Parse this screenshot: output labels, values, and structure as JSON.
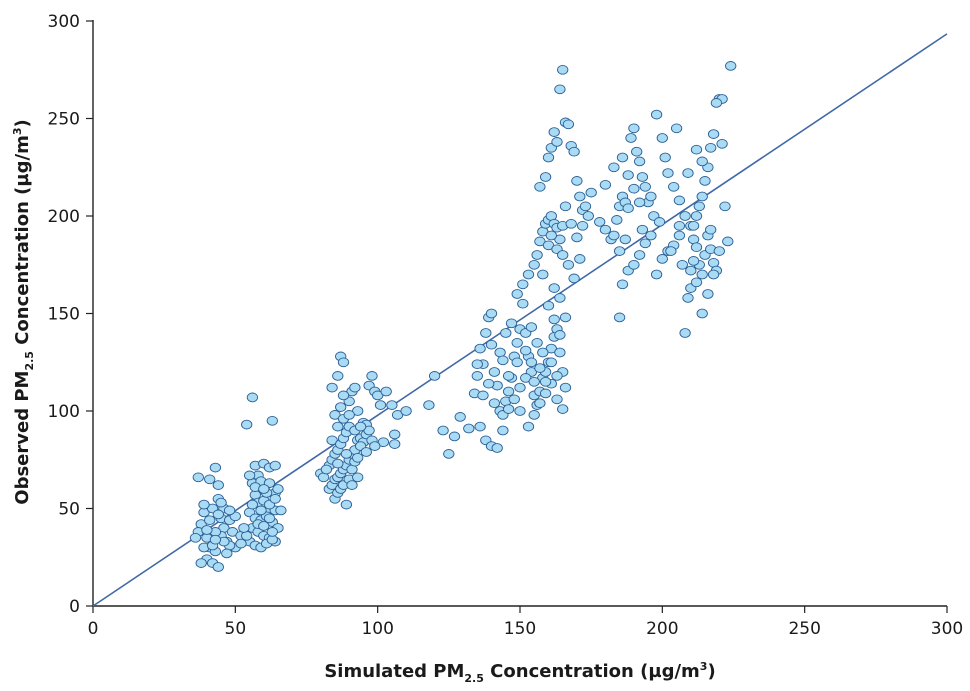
{
  "chart_data": {
    "type": "scatter",
    "xlabel": {
      "pre": "Simulated PM",
      "sub": "2.5",
      "post": " Concentration (µg/m",
      "sup": "3",
      "end": ")"
    },
    "ylabel": {
      "pre": "Observed PM",
      "sub": "2.5",
      "post": " Concentration (µg/m",
      "sup": "3",
      "end": ")"
    },
    "xlim": [
      0,
      300
    ],
    "ylim": [
      0,
      300
    ],
    "xticks": [
      "0",
      "50",
      "100",
      "150",
      "200",
      "250",
      "300"
    ],
    "yticks": [
      "0",
      "50",
      "100",
      "150",
      "200",
      "250",
      "300"
    ],
    "grid": false,
    "colors": {
      "marker_fill": "#a9dbf4",
      "marker_edge": "#2b5f94",
      "line": "#4169a8"
    },
    "reference_line": {
      "slope": 0.978,
      "intercept": 0
    },
    "points": [
      [
        37,
        66
      ],
      [
        41,
        65
      ],
      [
        44,
        62
      ],
      [
        43,
        71
      ],
      [
        40,
        35
      ],
      [
        38,
        42
      ],
      [
        39,
        48
      ],
      [
        42,
        50
      ],
      [
        44,
        55
      ],
      [
        45,
        45
      ],
      [
        46,
        40
      ],
      [
        41,
        30
      ],
      [
        43,
        28
      ],
      [
        40,
        24
      ],
      [
        42,
        22
      ],
      [
        44,
        20
      ],
      [
        47,
        33
      ],
      [
        48,
        44
      ],
      [
        49,
        38
      ],
      [
        46,
        50
      ],
      [
        45,
        36
      ],
      [
        37,
        38
      ],
      [
        39,
        30
      ],
      [
        38,
        22
      ],
      [
        50,
        46
      ],
      [
        52,
        36
      ],
      [
        50,
        30
      ],
      [
        48,
        31
      ],
      [
        43,
        38
      ],
      [
        36,
        35
      ],
      [
        41,
        44
      ],
      [
        44,
        47
      ],
      [
        46,
        33
      ],
      [
        39,
        52
      ],
      [
        42,
        31
      ],
      [
        47,
        27
      ],
      [
        40,
        39
      ],
      [
        45,
        53
      ],
      [
        48,
        49
      ],
      [
        43,
        34
      ],
      [
        54,
        93
      ],
      [
        56,
        107
      ],
      [
        63,
        95
      ],
      [
        57,
        72
      ],
      [
        58,
        67
      ],
      [
        60,
        73
      ],
      [
        62,
        71
      ],
      [
        64,
        72
      ],
      [
        56,
        63
      ],
      [
        59,
        64
      ],
      [
        62,
        63
      ],
      [
        64,
        58
      ],
      [
        55,
        67
      ],
      [
        57,
        57
      ],
      [
        58,
        53
      ],
      [
        60,
        54
      ],
      [
        62,
        50
      ],
      [
        64,
        49
      ],
      [
        55,
        48
      ],
      [
        57,
        45
      ],
      [
        59,
        44
      ],
      [
        61,
        46
      ],
      [
        63,
        43
      ],
      [
        65,
        40
      ],
      [
        56,
        40
      ],
      [
        58,
        38
      ],
      [
        60,
        36
      ],
      [
        62,
        35
      ],
      [
        64,
        33
      ],
      [
        55,
        33
      ],
      [
        57,
        31
      ],
      [
        59,
        30
      ],
      [
        61,
        32
      ],
      [
        63,
        34
      ],
      [
        58,
        42
      ],
      [
        60,
        41
      ],
      [
        62,
        52
      ],
      [
        64,
        55
      ],
      [
        66,
        49
      ],
      [
        57,
        61
      ],
      [
        61,
        58
      ],
      [
        54,
        36
      ],
      [
        52,
        32
      ],
      [
        53,
        40
      ],
      [
        60,
        60
      ],
      [
        65,
        60
      ],
      [
        62,
        45
      ],
      [
        59,
        49
      ],
      [
        56,
        52
      ],
      [
        63,
        38
      ],
      [
        80,
        68
      ],
      [
        83,
        72
      ],
      [
        84,
        85
      ],
      [
        85,
        98
      ],
      [
        86,
        118
      ],
      [
        87,
        128
      ],
      [
        88,
        125
      ],
      [
        90,
        105
      ],
      [
        91,
        110
      ],
      [
        92,
        112
      ],
      [
        93,
        100
      ],
      [
        95,
        94
      ],
      [
        96,
        93
      ],
      [
        97,
        113
      ],
      [
        98,
        118
      ],
      [
        99,
        110
      ],
      [
        100,
        108
      ],
      [
        101,
        103
      ],
      [
        103,
        110
      ],
      [
        105,
        103
      ],
      [
        106,
        88
      ],
      [
        107,
        98
      ],
      [
        110,
        100
      ],
      [
        83,
        60
      ],
      [
        84,
        62
      ],
      [
        85,
        65
      ],
      [
        86,
        66
      ],
      [
        87,
        68
      ],
      [
        88,
        70
      ],
      [
        89,
        72
      ],
      [
        90,
        75
      ],
      [
        91,
        78
      ],
      [
        92,
        80
      ],
      [
        93,
        85
      ],
      [
        94,
        86
      ],
      [
        95,
        84
      ],
      [
        96,
        88
      ],
      [
        97,
        90
      ],
      [
        84,
        75
      ],
      [
        85,
        78
      ],
      [
        86,
        80
      ],
      [
        87,
        83
      ],
      [
        88,
        86
      ],
      [
        89,
        89
      ],
      [
        90,
        92
      ],
      [
        85,
        55
      ],
      [
        86,
        58
      ],
      [
        87,
        60
      ],
      [
        88,
        62
      ],
      [
        89,
        52
      ],
      [
        90,
        65
      ],
      [
        91,
        70
      ],
      [
        92,
        74
      ],
      [
        93,
        76
      ],
      [
        94,
        82
      ],
      [
        86,
        92
      ],
      [
        88,
        96
      ],
      [
        90,
        98
      ],
      [
        98,
        85
      ],
      [
        102,
        84
      ],
      [
        106,
        83
      ],
      [
        84,
        112
      ],
      [
        81,
        66
      ],
      [
        82,
        70
      ],
      [
        86,
        73
      ],
      [
        89,
        78
      ],
      [
        91,
        62
      ],
      [
        93,
        66
      ],
      [
        96,
        79
      ],
      [
        99,
        82
      ],
      [
        87,
        102
      ],
      [
        88,
        108
      ],
      [
        92,
        90
      ],
      [
        94,
        92
      ],
      [
        118,
        103
      ],
      [
        120,
        118
      ],
      [
        123,
        90
      ],
      [
        125,
        78
      ],
      [
        127,
        87
      ],
      [
        129,
        97
      ],
      [
        132,
        91
      ],
      [
        134,
        109
      ],
      [
        135,
        118
      ],
      [
        136,
        132
      ],
      [
        137,
        124
      ],
      [
        138,
        140
      ],
      [
        139,
        148
      ],
      [
        140,
        150
      ],
      [
        141,
        120
      ],
      [
        142,
        113
      ],
      [
        143,
        100
      ],
      [
        144,
        98
      ],
      [
        145,
        105
      ],
      [
        146,
        110
      ],
      [
        147,
        117
      ],
      [
        148,
        128
      ],
      [
        149,
        135
      ],
      [
        150,
        142
      ],
      [
        151,
        155
      ],
      [
        152,
        140
      ],
      [
        153,
        128
      ],
      [
        154,
        120
      ],
      [
        155,
        108
      ],
      [
        156,
        103
      ],
      [
        157,
        110
      ],
      [
        158,
        117
      ],
      [
        159,
        120
      ],
      [
        160,
        125
      ],
      [
        161,
        132
      ],
      [
        162,
        138
      ],
      [
        163,
        142
      ],
      [
        164,
        130
      ],
      [
        165,
        120
      ],
      [
        166,
        112
      ],
      [
        136,
        92
      ],
      [
        138,
        85
      ],
      [
        140,
        82
      ],
      [
        142,
        81
      ],
      [
        144,
        90
      ],
      [
        146,
        101
      ],
      [
        148,
        106
      ],
      [
        150,
        112
      ],
      [
        152,
        117
      ],
      [
        154,
        125
      ],
      [
        137,
        108
      ],
      [
        139,
        114
      ],
      [
        141,
        104
      ],
      [
        143,
        130
      ],
      [
        145,
        140
      ],
      [
        147,
        145
      ],
      [
        149,
        160
      ],
      [
        151,
        165
      ],
      [
        153,
        170
      ],
      [
        155,
        175
      ],
      [
        156,
        180
      ],
      [
        157,
        187
      ],
      [
        158,
        192
      ],
      [
        159,
        196
      ],
      [
        160,
        198
      ],
      [
        161,
        200
      ],
      [
        162,
        196
      ],
      [
        163,
        194
      ],
      [
        164,
        188
      ],
      [
        165,
        195
      ],
      [
        150,
        100
      ],
      [
        153,
        92
      ],
      [
        155,
        98
      ],
      [
        157,
        104
      ],
      [
        159,
        109
      ],
      [
        161,
        114
      ],
      [
        163,
        118
      ],
      [
        158,
        130
      ],
      [
        156,
        135
      ],
      [
        154,
        143
      ],
      [
        146,
        118
      ],
      [
        149,
        125
      ],
      [
        160,
        154
      ],
      [
        162,
        147
      ],
      [
        164,
        139
      ],
      [
        166,
        148
      ],
      [
        135,
        124
      ],
      [
        140,
        134
      ],
      [
        144,
        126
      ],
      [
        152,
        131
      ],
      [
        157,
        122
      ],
      [
        159,
        115
      ],
      [
        161,
        125
      ],
      [
        163,
        106
      ],
      [
        165,
        101
      ],
      [
        155,
        115
      ],
      [
        157,
        215
      ],
      [
        159,
        220
      ],
      [
        160,
        230
      ],
      [
        161,
        235
      ],
      [
        162,
        243
      ],
      [
        163,
        238
      ],
      [
        164,
        265
      ],
      [
        165,
        275
      ],
      [
        166,
        248
      ],
      [
        167,
        247
      ],
      [
        168,
        236
      ],
      [
        169,
        233
      ],
      [
        170,
        218
      ],
      [
        171,
        210
      ],
      [
        172,
        203
      ],
      [
        173,
        205
      ],
      [
        174,
        200
      ],
      [
        160,
        185
      ],
      [
        161,
        190
      ],
      [
        163,
        183
      ],
      [
        165,
        180
      ],
      [
        167,
        175
      ],
      [
        169,
        168
      ],
      [
        171,
        178
      ],
      [
        166,
        205
      ],
      [
        168,
        196
      ],
      [
        170,
        189
      ],
      [
        172,
        195
      ],
      [
        158,
        170
      ],
      [
        162,
        163
      ],
      [
        164,
        158
      ],
      [
        175,
        212
      ],
      [
        178,
        197
      ],
      [
        180,
        193
      ],
      [
        182,
        188
      ],
      [
        183,
        190
      ],
      [
        184,
        198
      ],
      [
        185,
        205
      ],
      [
        186,
        210
      ],
      [
        187,
        207
      ],
      [
        188,
        204
      ],
      [
        189,
        240
      ],
      [
        190,
        245
      ],
      [
        191,
        233
      ],
      [
        192,
        228
      ],
      [
        193,
        220
      ],
      [
        194,
        215
      ],
      [
        195,
        207
      ],
      [
        196,
        210
      ],
      [
        197,
        200
      ],
      [
        198,
        252
      ],
      [
        200,
        240
      ],
      [
        201,
        230
      ],
      [
        202,
        222
      ],
      [
        204,
        215
      ],
      [
        206,
        208
      ],
      [
        208,
        200
      ],
      [
        210,
        195
      ],
      [
        211,
        188
      ],
      [
        212,
        184
      ],
      [
        213,
        175
      ],
      [
        214,
        170
      ],
      [
        215,
        180
      ],
      [
        216,
        190
      ],
      [
        217,
        183
      ],
      [
        218,
        176
      ],
      [
        219,
        172
      ],
      [
        220,
        260
      ],
      [
        221,
        260
      ],
      [
        219,
        258
      ],
      [
        218,
        242
      ],
      [
        217,
        235
      ],
      [
        216,
        225
      ],
      [
        215,
        218
      ],
      [
        214,
        210
      ],
      [
        213,
        205
      ],
      [
        212,
        200
      ],
      [
        211,
        195
      ],
      [
        185,
        148
      ],
      [
        186,
        165
      ],
      [
        188,
        172
      ],
      [
        190,
        175
      ],
      [
        192,
        180
      ],
      [
        194,
        186
      ],
      [
        196,
        190
      ],
      [
        198,
        170
      ],
      [
        200,
        178
      ],
      [
        202,
        182
      ],
      [
        204,
        185
      ],
      [
        206,
        190
      ],
      [
        208,
        140
      ],
      [
        209,
        158
      ],
      [
        210,
        163
      ],
      [
        212,
        166
      ],
      [
        214,
        150
      ],
      [
        216,
        160
      ],
      [
        218,
        170
      ],
      [
        220,
        182
      ],
      [
        222,
        205
      ],
      [
        223,
        187
      ],
      [
        224,
        277
      ],
      [
        180,
        216
      ],
      [
        183,
        225
      ],
      [
        186,
        230
      ],
      [
        188,
        221
      ],
      [
        190,
        214
      ],
      [
        192,
        207
      ],
      [
        206,
        195
      ],
      [
        210,
        172
      ],
      [
        214,
        228
      ],
      [
        185,
        182
      ],
      [
        187,
        188
      ],
      [
        209,
        222
      ],
      [
        212,
        234
      ],
      [
        221,
        237
      ],
      [
        205,
        245
      ],
      [
        193,
        193
      ],
      [
        199,
        197
      ],
      [
        203,
        182
      ],
      [
        207,
        175
      ],
      [
        211,
        177
      ],
      [
        217,
        193
      ]
    ]
  }
}
